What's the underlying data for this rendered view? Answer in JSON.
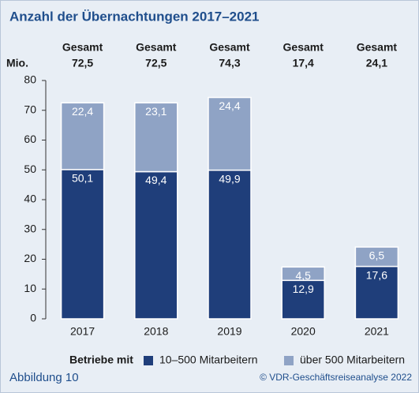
{
  "chart_data": {
    "type": "stacked-bar",
    "title": "Anzahl der Übernachtungen 2017–2021",
    "y_label": "Mio.",
    "totals_name": "Gesamt",
    "total_labels": [
      "72,5",
      "72,5",
      "74,3",
      "17,4",
      "24,1"
    ],
    "categories": [
      "2017",
      "2018",
      "2019",
      "2020",
      "2021"
    ],
    "legend_title": "Betriebe mit",
    "series": [
      {
        "name": "10–500 Mitarbeitern",
        "color": "#1f3e7a",
        "values": [
          50.1,
          49.4,
          49.9,
          12.9,
          17.6
        ],
        "value_labels": [
          "50,1",
          "49,4",
          "49,9",
          "12,9",
          "17,6"
        ]
      },
      {
        "name": "über 500 Mitarbeitern",
        "color": "#8fa3c5",
        "values": [
          22.4,
          23.1,
          24.4,
          4.5,
          6.5
        ],
        "value_labels": [
          "22,4",
          "23,1",
          "24,4",
          "4,5",
          "6,5"
        ]
      }
    ],
    "ylim": [
      0,
      80
    ],
    "yticks": [
      0,
      10,
      20,
      30,
      40,
      50,
      60,
      70,
      80
    ],
    "figure_label": "Abbildung 10",
    "source": "© VDR-Geschäftsreiseanalyse 2022"
  }
}
